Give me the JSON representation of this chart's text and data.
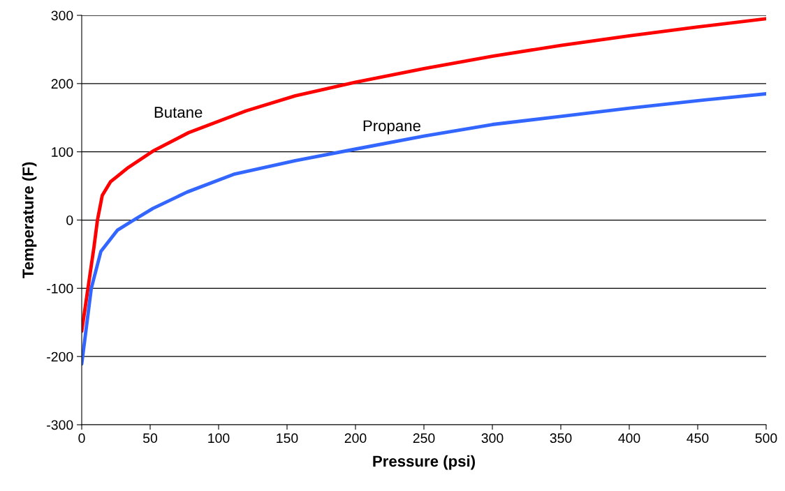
{
  "chart_data": {
    "type": "line",
    "xlabel": "Pressure (psi)",
    "ylabel": "Temperature (F)",
    "xlim": [
      0,
      500
    ],
    "xticks": [
      0,
      50,
      100,
      150,
      200,
      250,
      300,
      350,
      400,
      450,
      500
    ],
    "ylim": [
      -300,
      300
    ],
    "yticks": [
      -300,
      -200,
      -100,
      0,
      100,
      200,
      300
    ],
    "grid": "y",
    "line_style": "solid",
    "series": [
      {
        "name": "Butane",
        "color": "#ff0000",
        "x": [
          0,
          9,
          11.5,
          15,
          21,
          34,
          52,
          78,
          120,
          156,
          200,
          250,
          300,
          350,
          400,
          450,
          500
        ],
        "values": [
          -163,
          -39,
          0,
          36,
          56,
          77,
          101,
          128,
          160,
          182,
          202,
          222,
          240,
          256,
          270,
          283,
          295
        ]
      },
      {
        "name": "Propane",
        "color": "#3366ff",
        "x": [
          0,
          7,
          14,
          26,
          38,
          52,
          77,
          111,
          156,
          200,
          250,
          300,
          350,
          400,
          450,
          500
        ],
        "values": [
          -211,
          -100,
          -46,
          -15,
          0,
          17,
          41,
          67,
          87,
          104,
          123,
          140,
          152,
          164,
          175,
          185
        ]
      }
    ]
  }
}
